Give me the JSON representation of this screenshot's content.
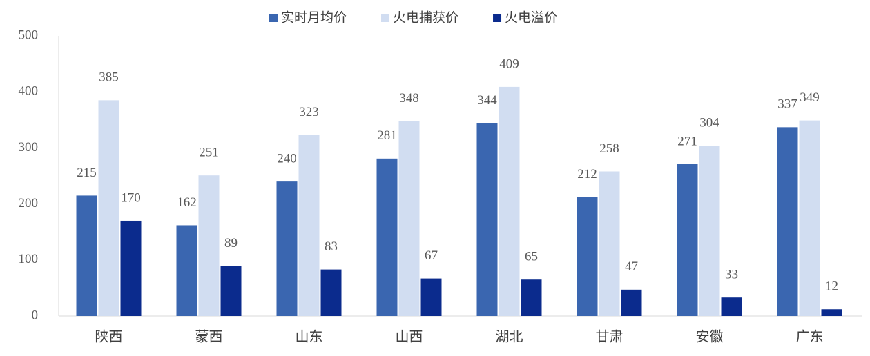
{
  "chart_data": {
    "type": "bar",
    "categories": [
      "陕西",
      "蒙西",
      "山东",
      "山西",
      "湖北",
      "甘肃",
      "安徽",
      "广东"
    ],
    "series": [
      {
        "name": "实时月均价",
        "color": "#3a66b0",
        "values": [
          215,
          162,
          240,
          281,
          344,
          212,
          271,
          337
        ]
      },
      {
        "name": "火电捕获价",
        "color": "#d1ddf1",
        "values": [
          385,
          251,
          323,
          348,
          409,
          258,
          304,
          349
        ]
      },
      {
        "name": "火电溢价",
        "color": "#0b2b8d",
        "values": [
          170,
          89,
          83,
          67,
          65,
          47,
          33,
          12
        ]
      }
    ],
    "ylim": [
      0,
      500
    ],
    "yticks": [
      0,
      100,
      200,
      300,
      400,
      500
    ],
    "grid": false,
    "legend": "top"
  }
}
